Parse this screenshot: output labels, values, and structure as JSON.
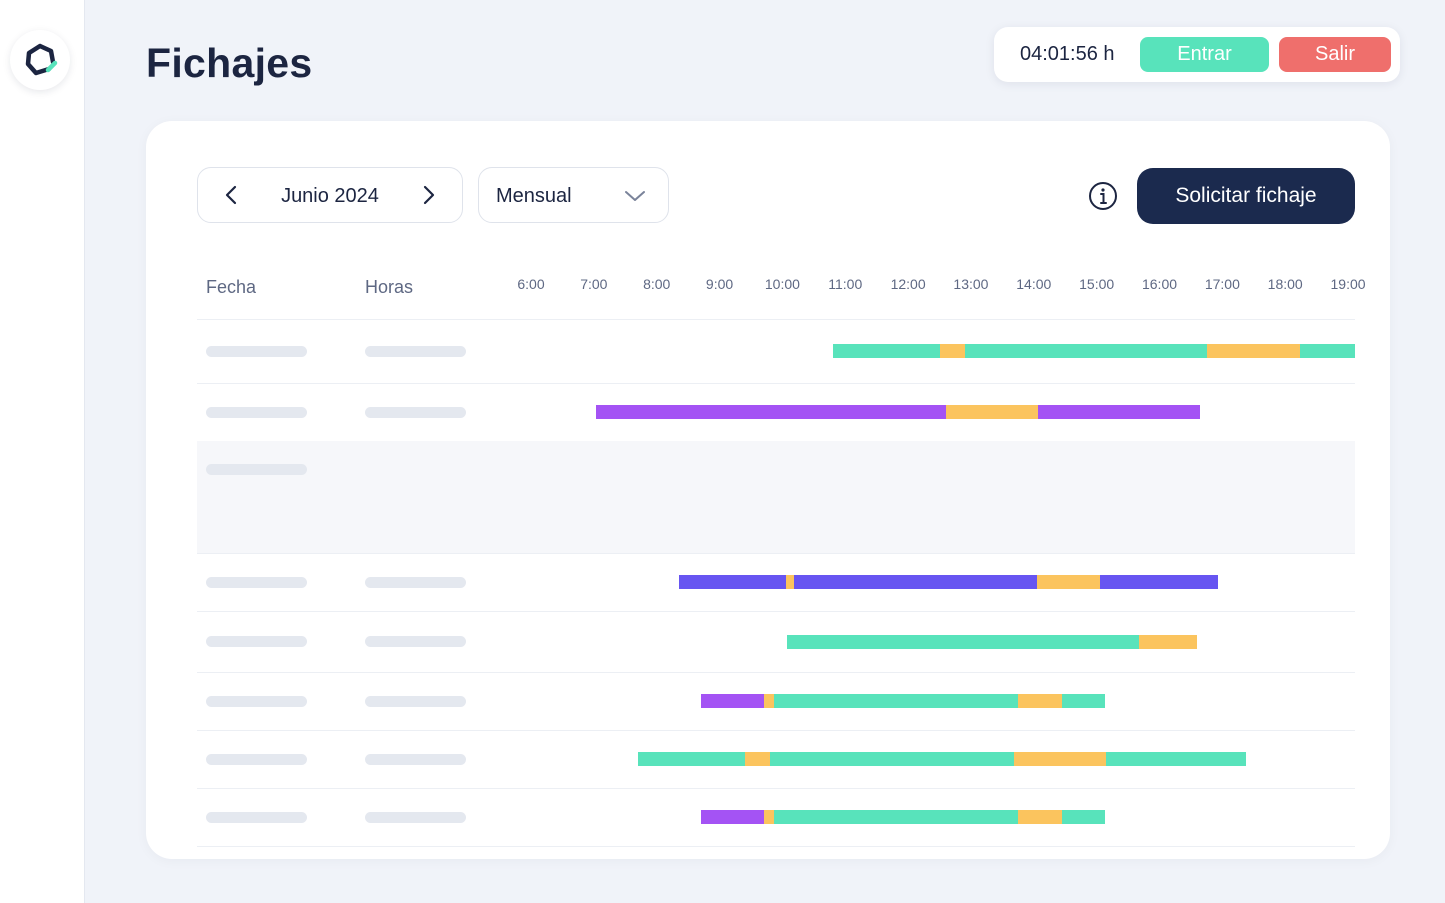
{
  "app": {
    "logo_icon": "app-logo-icon"
  },
  "header": {
    "title": "Fichajes"
  },
  "clock": {
    "elapsed": "04:01:56 h",
    "enter_label": "Entrar",
    "exit_label": "Salir",
    "enter_color": "#58e3bb",
    "exit_color": "#ef6f6c"
  },
  "toolbar": {
    "month_label": "Junio 2024",
    "prev_icon": "chevron-left-icon",
    "next_icon": "chevron-right-icon",
    "period_value": "Mensual",
    "info_icon": "info-icon",
    "request_label": "Solicitar fichaje"
  },
  "table": {
    "columns": [
      "Fecha",
      "Horas"
    ],
    "hours": [
      "6:00",
      "7:00",
      "8:00",
      "9:00",
      "10:00",
      "11:00",
      "12:00",
      "13:00",
      "14:00",
      "15:00",
      "16:00",
      "17:00",
      "18:00",
      "19:00"
    ],
    "colors": {
      "green": "#58e3bb",
      "orange": "#fbc45e",
      "purple": "#a453f4",
      "blue": "#6755f1"
    },
    "rows": [
      {
        "weekend": false,
        "show_hours": true,
        "segments": [
          [
            10.8,
            12.5,
            "green"
          ],
          [
            12.5,
            12.9,
            "orange"
          ],
          [
            12.9,
            16.75,
            "green"
          ],
          [
            16.75,
            18.23,
            "orange"
          ],
          [
            18.23,
            20.15,
            "green"
          ]
        ]
      },
      {
        "weekend": false,
        "show_hours": true,
        "segments": [
          [
            7.03,
            12.6,
            "purple"
          ],
          [
            12.6,
            14.07,
            "orange"
          ],
          [
            14.07,
            16.65,
            "purple"
          ]
        ]
      },
      {
        "weekend": true,
        "show_hours": false,
        "show_date": true,
        "segments": []
      },
      {
        "weekend": true,
        "show_hours": false,
        "show_date": false,
        "segments": []
      },
      {
        "weekend": false,
        "show_hours": true,
        "segments": [
          [
            8.35,
            10.05,
            "blue"
          ],
          [
            10.05,
            10.18,
            "orange"
          ],
          [
            10.18,
            14.05,
            "blue"
          ],
          [
            14.05,
            15.05,
            "orange"
          ],
          [
            15.05,
            16.93,
            "blue"
          ]
        ]
      },
      {
        "weekend": false,
        "show_hours": true,
        "segments": [
          [
            10.08,
            15.67,
            "green"
          ],
          [
            15.67,
            16.6,
            "orange"
          ]
        ]
      },
      {
        "weekend": false,
        "show_hours": true,
        "segments": [
          [
            8.7,
            9.7,
            "purple"
          ],
          [
            9.7,
            9.87,
            "orange"
          ],
          [
            9.87,
            13.75,
            "green"
          ],
          [
            13.75,
            14.45,
            "orange"
          ],
          [
            14.45,
            15.13,
            "green"
          ]
        ]
      },
      {
        "weekend": false,
        "show_hours": true,
        "segments": [
          [
            7.7,
            9.4,
            "green"
          ],
          [
            9.4,
            9.8,
            "orange"
          ],
          [
            9.8,
            13.68,
            "green"
          ],
          [
            13.68,
            15.15,
            "orange"
          ],
          [
            15.15,
            17.38,
            "green"
          ]
        ]
      },
      {
        "weekend": false,
        "show_hours": true,
        "segments": [
          [
            8.7,
            9.7,
            "purple"
          ],
          [
            9.7,
            9.87,
            "orange"
          ],
          [
            9.87,
            13.75,
            "green"
          ],
          [
            13.75,
            14.45,
            "orange"
          ],
          [
            14.45,
            15.13,
            "green"
          ]
        ]
      }
    ]
  }
}
